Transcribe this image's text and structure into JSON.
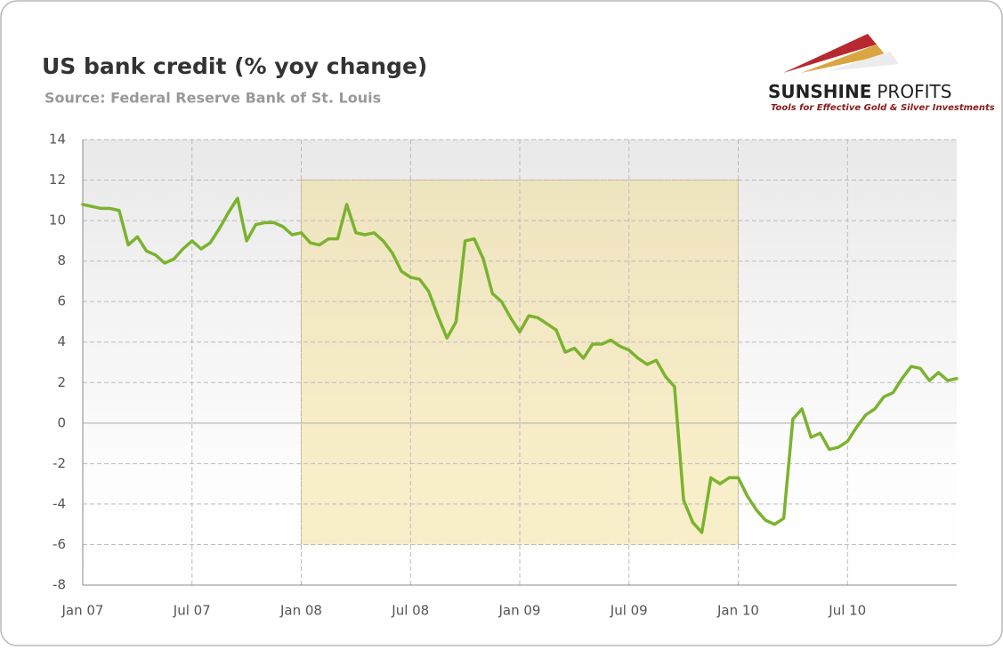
{
  "chart_data": {
    "type": "line",
    "title": "US bank credit (% yoy change)",
    "subtitle": "Source: Federal Reserve Bank of St. Louis",
    "logo": {
      "brand": [
        "SUNSHINE",
        "PROFITS"
      ],
      "tagline": "Tools for Effective Gold & Silver Investments"
    },
    "x": [
      0,
      0.5,
      1,
      1.5,
      2,
      2.5,
      3,
      3.5,
      4,
      4.5,
      5,
      5.5,
      6,
      6.5,
      7,
      7.5,
      8,
      8.5,
      9,
      9.5,
      10,
      10.5,
      11,
      11.5,
      12,
      12.5,
      13,
      13.5,
      14,
      14.5,
      15,
      15.5,
      16,
      16.5,
      17,
      17.5,
      18,
      18.5,
      19,
      19.5,
      20,
      20.5,
      21,
      21.5,
      22,
      22.5,
      23,
      23.5,
      24,
      24.5,
      25,
      25.5,
      26,
      26.5,
      27,
      27.5,
      28,
      28.5,
      29,
      29.5,
      30,
      30.5,
      31,
      31.5,
      32,
      32.5,
      33,
      33.5,
      34,
      34.5,
      35,
      35.5,
      36,
      36.5,
      37,
      37.5,
      38,
      38.5,
      39,
      39.5,
      40,
      40.5,
      41,
      41.5,
      42,
      42.5,
      43,
      43.5,
      44,
      44.5,
      45,
      45.5,
      46,
      46.5,
      47,
      47.5,
      48
    ],
    "values": [
      10.8,
      10.7,
      10.6,
      10.6,
      10.5,
      8.8,
      9.2,
      8.5,
      8.3,
      7.9,
      8.1,
      8.6,
      9.0,
      8.6,
      8.9,
      9.6,
      10.4,
      11.1,
      9.0,
      9.8,
      9.9,
      9.9,
      9.7,
      9.3,
      9.4,
      8.9,
      8.8,
      9.1,
      9.1,
      10.8,
      9.4,
      9.3,
      9.4,
      9.0,
      8.4,
      7.5,
      7.2,
      7.1,
      6.5,
      5.3,
      4.2,
      5.0,
      9.0,
      9.1,
      8.1,
      6.4,
      6.0,
      5.2,
      4.5,
      5.3,
      5.2,
      4.9,
      4.6,
      3.5,
      3.7,
      3.2,
      3.9,
      3.9,
      4.1,
      3.8,
      3.6,
      3.2,
      2.9,
      3.1,
      2.3,
      1.8,
      -3.8,
      -4.9,
      -5.4,
      -2.7,
      -3.0,
      -2.7,
      -2.7,
      -3.6,
      -4.3,
      -4.8,
      -5.0,
      -4.7,
      0.2,
      0.7,
      -0.7,
      -0.5,
      -1.3,
      -1.2,
      -0.9,
      -0.2,
      0.4,
      0.7,
      1.3,
      1.5,
      2.2,
      2.8,
      2.7,
      2.1,
      2.5,
      2.1,
      2.2
    ],
    "color": "#7ab32e",
    "xlim": [
      0,
      48
    ],
    "xticks": [
      {
        "value": 0,
        "label": "Jan 07"
      },
      {
        "value": 6,
        "label": "Jul 07"
      },
      {
        "value": 12,
        "label": "Jan 08"
      },
      {
        "value": 18,
        "label": "Jul 08"
      },
      {
        "value": 24,
        "label": "Jan 09"
      },
      {
        "value": 30,
        "label": "Jul 09"
      },
      {
        "value": 36,
        "label": "Jan 10"
      },
      {
        "value": 42,
        "label": "Jul 10"
      }
    ],
    "ylim": [
      -8,
      14
    ],
    "yticks": [
      -8,
      -6,
      -4,
      -2,
      0,
      2,
      4,
      6,
      8,
      10,
      12,
      14
    ],
    "grid": true,
    "shaded_region": {
      "x": [
        12,
        36
      ],
      "y": [
        -6,
        12
      ],
      "color": "#f5dc8c"
    }
  }
}
